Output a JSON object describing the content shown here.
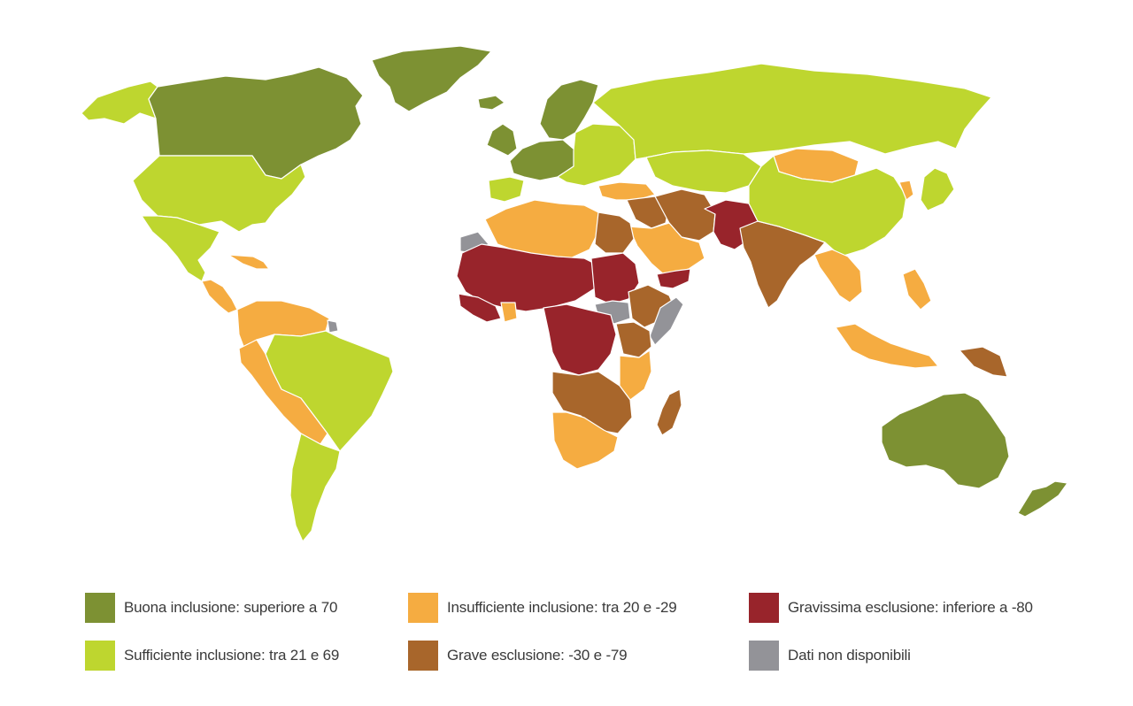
{
  "colors": {
    "good": "#7d9133",
    "sufficient": "#bed62f",
    "insufficient": "#f5ac41",
    "grave": "#a8662b",
    "very_grave": "#98242b",
    "no_data": "#939398"
  },
  "legend": [
    {
      "key": "good",
      "label": "Buona inclusione: superiore a 70"
    },
    {
      "key": "insufficient",
      "label": "Insufficiente inclusione:  tra 20 e -29"
    },
    {
      "key": "very_grave",
      "label": "Gravissima esclusione:  inferiore a -80"
    },
    {
      "key": "sufficient",
      "label": "Sufficiente inclusione:  tra 21 e 69"
    },
    {
      "key": "grave",
      "label": "Grave esclusione:  -30 e -79"
    },
    {
      "key": "no_data",
      "label": "Dati non disponibili"
    }
  ],
  "regions": [
    {
      "name": "alaska",
      "category": "sufficient"
    },
    {
      "name": "canada",
      "category": "good"
    },
    {
      "name": "greenland",
      "category": "good"
    },
    {
      "name": "usa",
      "category": "sufficient"
    },
    {
      "name": "mexico",
      "category": "sufficient"
    },
    {
      "name": "central-america",
      "category": "insufficient"
    },
    {
      "name": "caribbean",
      "category": "insufficient"
    },
    {
      "name": "northern-south-america",
      "category": "insufficient"
    },
    {
      "name": "brazil",
      "category": "sufficient"
    },
    {
      "name": "andes-west",
      "category": "insufficient"
    },
    {
      "name": "southern-cone",
      "category": "sufficient"
    },
    {
      "name": "guiana",
      "category": "no_data"
    },
    {
      "name": "iceland",
      "category": "good"
    },
    {
      "name": "uk-ireland",
      "category": "good"
    },
    {
      "name": "scandinavia",
      "category": "good"
    },
    {
      "name": "western-europe",
      "category": "good"
    },
    {
      "name": "iberia",
      "category": "sufficient"
    },
    {
      "name": "eastern-europe",
      "category": "sufficient"
    },
    {
      "name": "russia",
      "category": "sufficient"
    },
    {
      "name": "central-asia",
      "category": "sufficient"
    },
    {
      "name": "turkey",
      "category": "insufficient"
    },
    {
      "name": "middle-east",
      "category": "grave"
    },
    {
      "name": "iran",
      "category": "grave"
    },
    {
      "name": "arabia",
      "category": "insufficient"
    },
    {
      "name": "yemen",
      "category": "very_grave"
    },
    {
      "name": "afghanistan-pakistan",
      "category": "very_grave"
    },
    {
      "name": "india",
      "category": "grave"
    },
    {
      "name": "mongolia",
      "category": "insufficient"
    },
    {
      "name": "china",
      "category": "sufficient"
    },
    {
      "name": "korea",
      "category": "insufficient"
    },
    {
      "name": "japan",
      "category": "sufficient"
    },
    {
      "name": "southeast-asia",
      "category": "insufficient"
    },
    {
      "name": "philippines",
      "category": "insufficient"
    },
    {
      "name": "indonesia",
      "category": "insufficient"
    },
    {
      "name": "papua",
      "category": "grave"
    },
    {
      "name": "australia",
      "category": "good"
    },
    {
      "name": "new-zealand",
      "category": "good"
    },
    {
      "name": "north-africa",
      "category": "insufficient"
    },
    {
      "name": "egypt",
      "category": "grave"
    },
    {
      "name": "western-sahara",
      "category": "no_data"
    },
    {
      "name": "sahel",
      "category": "very_grave"
    },
    {
      "name": "west-africa-coast",
      "category": "very_grave"
    },
    {
      "name": "ghana",
      "category": "insufficient"
    },
    {
      "name": "sudan",
      "category": "very_grave"
    },
    {
      "name": "south-sudan-ethiopia",
      "category": "no_data"
    },
    {
      "name": "horn-ethiopia",
      "category": "grave"
    },
    {
      "name": "somalia",
      "category": "no_data"
    },
    {
      "name": "central-africa",
      "category": "very_grave"
    },
    {
      "name": "east-africa",
      "category": "grave"
    },
    {
      "name": "kenya-tanzania",
      "category": "insufficient"
    },
    {
      "name": "southern-central-africa",
      "category": "grave"
    },
    {
      "name": "south-africa",
      "category": "insufficient"
    },
    {
      "name": "madagascar",
      "category": "grave"
    }
  ]
}
